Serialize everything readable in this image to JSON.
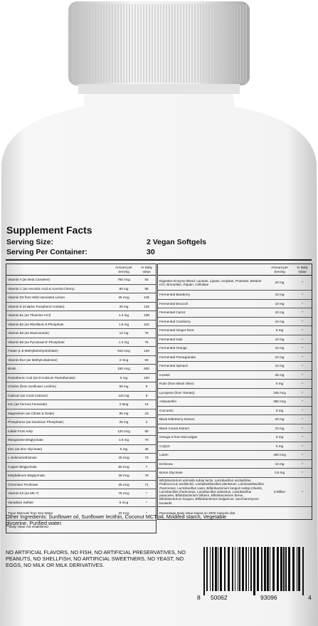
{
  "label": {
    "title": "Supplement Facts",
    "serving_size_label": "Serving Size:",
    "serving_size": "2 Vegan Softgels",
    "servings_label": "Serving Per Container:",
    "servings": "30",
    "left": {
      "header": [
        "Amount per Serving",
        "% Daily Value"
      ],
      "rows": [
        [
          "Vitamin A (as Beta Carotene)",
          "750 mcg",
          "83"
        ],
        [
          "Vitamin C (as Ascorbic Acid & Acerola Cherry)",
          "80 mg",
          "89"
        ],
        [
          "Vitamin D3 from Wild Harvested Lichen",
          "25 mcg",
          "125"
        ],
        [
          "Vitamin E (d-alpha Tocopherol Acetate)",
          "20 mg",
          "133"
        ],
        [
          "Vitamin B1 (as Thiamine HCl)",
          "1.3 mg",
          "108"
        ],
        [
          "Vitamin B2 (as Riboflavin 5-Phosphate",
          "1.5 mg",
          "115"
        ],
        [
          "Vitamin B3 (as Niacinamide)",
          "12 mg",
          "75"
        ],
        [
          "Vitamin B6 (as Pyrodoxal 5'-Phosphate",
          "1.3 mg",
          "76"
        ],
        [
          "Folate (L-5-Methyltetrahydrofolate)",
          "510 mcg",
          "128"
        ],
        [
          "Vitamin B12 (as Methylcobalmine)",
          "2 mcg",
          "83"
        ],
        [
          "Biotin",
          "150 mcg",
          "500"
        ],
        [
          "Pantothenic Acid (as D-Calcium Pantothenate)",
          "5 mg",
          "100"
        ],
        [
          "Choline (from Sunflower Lecithin)",
          "50 mg",
          "9"
        ],
        [
          "Calcium (as Coral Calcium)",
          "110 mg",
          "8"
        ],
        [
          "Iron (as Ferrous Fumarate)",
          "2.5mg",
          "14"
        ],
        [
          "Magnesium (as Citrate & Oxide)",
          "95 mg",
          "23"
        ],
        [
          "Phosphorus (as Dicalcium Phosphate)",
          "25 mg",
          "2"
        ],
        [
          "Iodide From Kelp",
          "120 mcg",
          "80"
        ],
        [
          "Manganese Bisglycinate",
          "1.6 mg",
          "70"
        ],
        [
          "Zinc (as Zinc Glycinate)",
          "5 mg",
          "45"
        ],
        [
          "L-Selenomethionine",
          "40 mcg",
          "73"
        ],
        [
          "Copper Bisglycinate",
          "60 mcg",
          "7"
        ],
        [
          "Molybdenum Bisglycinate",
          "35 mcg",
          "78"
        ],
        [
          "Chromium Picolinate",
          "25 mcg",
          "71"
        ],
        [
          "Vitamin K2 (as MK-7)",
          "75 mcg",
          "*"
        ],
        [
          "Vanadium Sulfate",
          "5 mcg",
          "*"
        ],
        [
          "Trace Minerals from Sea Water",
          "20 mcg",
          "*"
        ]
      ],
      "footnote": "*Daily Value not established"
    },
    "right": {
      "header": [
        "Amount per Serving",
        "% Daily Value"
      ],
      "rows": [
        [
          "Digestive Enzyme Blend: Lactase, Lipase, Amylase, Protease, Betaine HCl, Bromelain, Papain, Cellulase",
          "20 mg",
          "*"
        ],
        [
          "Fermented Blueberry",
          "10 mg",
          "*"
        ],
        [
          "Fermented Broccoli",
          "10 mg",
          "*"
        ],
        [
          "Fermented Carrot",
          "10 mg",
          "*"
        ],
        [
          "Fermented Cranberry",
          "10 mg",
          "*"
        ],
        [
          "Fermented Ginger Root",
          "5 mg",
          "*"
        ],
        [
          "Fermented Kale",
          "10 mg",
          "*"
        ],
        [
          "Fermented Orange",
          "10 mg",
          "*"
        ],
        [
          "Fermented Pomegranate",
          "10 mg",
          "*"
        ],
        [
          "Fermented Spinach",
          "10 mg",
          "*"
        ],
        [
          "Inositol",
          "25 mg",
          "*"
        ],
        [
          "Rutin (from Black Olive)",
          "5 mg",
          "*"
        ],
        [
          "Lycopene (from Tomato)",
          "165 mcg",
          "*"
        ],
        [
          "Astaxanthin",
          "360 mcg",
          "*"
        ],
        [
          "Curcumin",
          "5 mg",
          "*"
        ],
        [
          "Black Elderberry Extract",
          "20 mg",
          "*"
        ],
        [
          "Black Curant Extract",
          "10 mg",
          "*"
        ],
        [
          "Omega-3 from Microalgae",
          "5 mg",
          "*"
        ],
        [
          "CoQ10",
          "5 mg",
          "*"
        ],
        [
          "Lutein",
          "450 mcg",
          "*"
        ],
        [
          "Echincea",
          "10 mg",
          "*"
        ],
        [
          "Boron Glycinate",
          "0.5 mg",
          "*"
        ],
        [
          "Bifidobacterium animalis subsp lactis, Lactobacillus acidophilus, Pediococcus acidilactici, Lactiplantibacillus plantarum, Lacticaseibacillus rhamnosus, Lactobacillus casei, Bifidobacterium longum subsp infantis, Lactobacillus rhamnosus, Lactobacillus salivarius, Lactobacillus paracasei, Bifidobacterium bifidum, Bifidobacterium breve, Bifidobacterium longum, Bifidobacterium bulgaricus, Saccharomyces boulardii",
          "5 Billion",
          "*"
        ]
      ],
      "footnote": "Percentage Daily Value based on 2000 Caloorie diet"
    },
    "other_ingredients": "Other Ingredients: Sunflower oil, Sunflower lecithin, Coconut MCT oil, Modifed starch, Vegetable glycerine, Purified water.",
    "warning": "NO ARTIFICIAL FLAVORS, NO FISH, NO ARTIFICIAL PRESERVATIVES, NO PEANUTS, NO SHELLFISH, NO ARTIFICIAL SWEETNERS, NO YEAST, NO EGGS, NO MILK OR MILK DERIVATIVES.",
    "barcode": [
      "8",
      "50062",
      "93096",
      "4"
    ]
  }
}
